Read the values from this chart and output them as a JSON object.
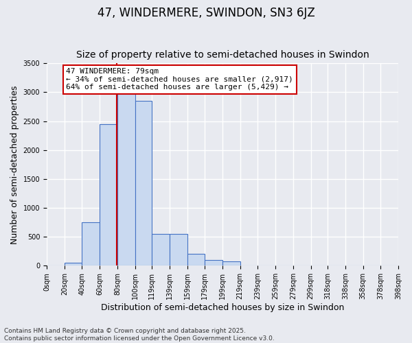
{
  "title": "47, WINDERMERE, SWINDON, SN3 6JZ",
  "subtitle": "Size of property relative to semi-detached houses in Swindon",
  "xlabel": "Distribution of semi-detached houses by size in Swindon",
  "ylabel": "Number of semi-detached properties",
  "footer": "Contains HM Land Registry data © Crown copyright and database right 2025.\nContains public sector information licensed under the Open Government Licence v3.0.",
  "annotation_title": "47 WINDERMERE: 79sqm",
  "annotation_line1": "← 34% of semi-detached houses are smaller (2,917)",
  "annotation_line2": "64% of semi-detached houses are larger (5,429) →",
  "property_sqm": 79,
  "bar_values": [
    0,
    50,
    750,
    2450,
    3250,
    2850,
    550,
    550,
    200,
    100,
    75,
    0,
    0,
    0,
    0,
    0,
    0,
    0,
    0,
    0
  ],
  "bin_edges": [
    0,
    20,
    40,
    60,
    80,
    100,
    119,
    139,
    159,
    179,
    199,
    219,
    239,
    259,
    279,
    299,
    318,
    338,
    358,
    378,
    398
  ],
  "bin_labels": [
    "0sqm",
    "20sqm",
    "40sqm",
    "60sqm",
    "80sqm",
    "100sqm",
    "119sqm",
    "139sqm",
    "159sqm",
    "179sqm",
    "199sqm",
    "219sqm",
    "239sqm",
    "259sqm",
    "279sqm",
    "299sqm",
    "318sqm",
    "338sqm",
    "358sqm",
    "378sqm",
    "398sqm"
  ],
  "ylim": [
    0,
    3500
  ],
  "yticks": [
    0,
    500,
    1000,
    1500,
    2000,
    2500,
    3000,
    3500
  ],
  "bar_color": "#c9d9f0",
  "bar_edge_color": "#4472c4",
  "bg_color": "#e8eaf0",
  "grid_color": "#ffffff",
  "annotation_box_color": "#ffffff",
  "annotation_box_edge": "#cc0000",
  "vline_color": "#cc0000",
  "title_fontsize": 12,
  "subtitle_fontsize": 10,
  "axis_label_fontsize": 9,
  "tick_fontsize": 7,
  "annotation_fontsize": 8,
  "footer_fontsize": 6.5
}
